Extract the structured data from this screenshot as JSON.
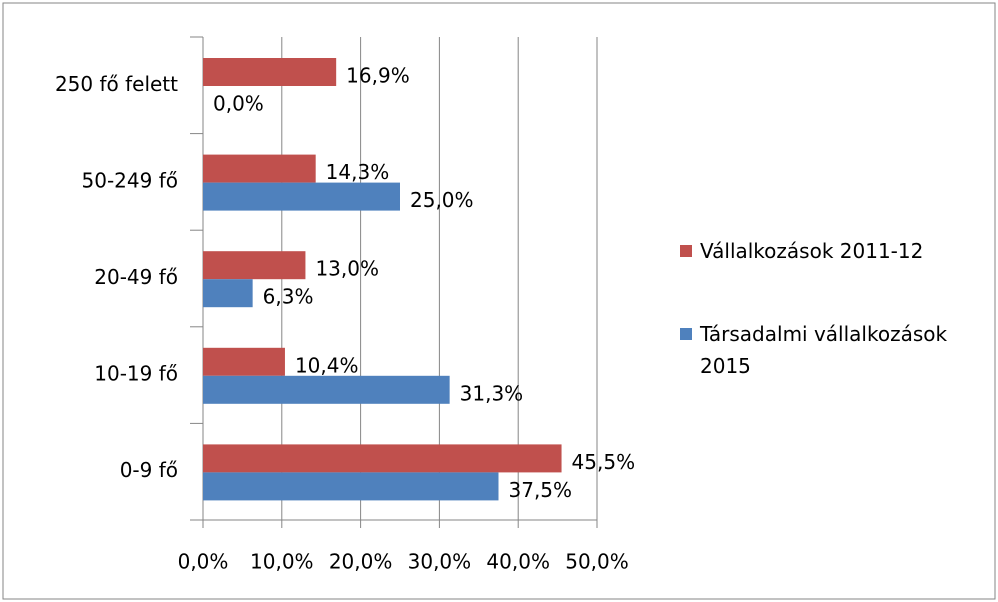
{
  "chart_data": {
    "type": "hbar",
    "categories": [
      "250 fő felett",
      "50-249 fő",
      "20-49 fő",
      "10-19 fő",
      "0-9 fő"
    ],
    "series": [
      {
        "name": "Vállalkozások 2011-12",
        "color": "#c0504d",
        "values": [
          16.9,
          14.3,
          13.0,
          10.4,
          45.5
        ],
        "value_labels": [
          "16,9%",
          "14,3%",
          "13,0%",
          "10,4%",
          "45,5%"
        ]
      },
      {
        "name": "Társadalmi vállalkozások 2015",
        "color": "#4f81bd",
        "values": [
          0.0,
          25.0,
          6.3,
          31.3,
          37.5
        ],
        "value_labels": [
          "0,0%",
          "25,0%",
          "6,3%",
          "31,3%",
          "37,5%"
        ]
      }
    ],
    "xlim": [
      0,
      50
    ],
    "xticks": [
      {
        "value": 0,
        "label": "0,0%"
      },
      {
        "value": 10,
        "label": "10,0%"
      },
      {
        "value": 20,
        "label": "20,0%"
      },
      {
        "value": 30,
        "label": "30,0%"
      },
      {
        "value": 40,
        "label": "40,0%"
      },
      {
        "value": 50,
        "label": "50,0%"
      }
    ],
    "grid": true
  }
}
